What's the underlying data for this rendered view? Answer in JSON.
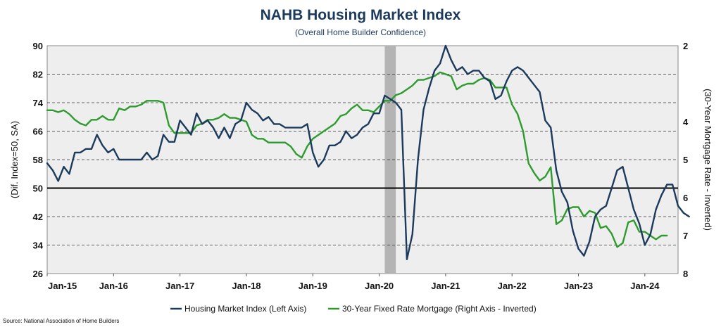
{
  "chart_data": {
    "type": "line",
    "title": "NAHB Housing Market Index",
    "subtitle": "(Overall Home Builder Confidence)",
    "ylabel_left": "(Dif. Index=50, SA)",
    "ylabel_right": "(30-Year Mortgage Rate - Inverted)",
    "source": "Source: National Association of Home Builders",
    "x_start": "2015-01",
    "x_end": "2024-07",
    "x_tick_labels": [
      "Jan-15",
      "Jan-16",
      "Jan-17",
      "Jan-18",
      "Jan-19",
      "Jan-20",
      "Jan-21",
      "Jan-22",
      "Jan-23",
      "Jan-24"
    ],
    "y_left": {
      "min": 26,
      "max": 90,
      "ticks": [
        26,
        34,
        42,
        50,
        58,
        66,
        74,
        82,
        90
      ]
    },
    "y_right": {
      "min": 2,
      "max": 8,
      "inverted": true,
      "ticks": [
        2,
        4,
        5,
        6,
        7,
        8
      ]
    },
    "reference_line_left": 50,
    "shaded_period": {
      "start": "2020-02",
      "end": "2020-04"
    },
    "grid": "horizontal dashed",
    "legend_position": "bottom",
    "colors": {
      "hmi": "#1b3a5c",
      "mortgage": "#2e9b2e",
      "background": "#eeeeee",
      "recession": "#b4b4b4"
    },
    "series": [
      {
        "name": "Housing Market Index (Left Axis)",
        "axis": "left",
        "start": "2015-01",
        "values": [
          57,
          55,
          52,
          56,
          54,
          60,
          60,
          61,
          61,
          65,
          62,
          60,
          61,
          58,
          58,
          58,
          58,
          58,
          60,
          58,
          59,
          65,
          63,
          63,
          69,
          67,
          65,
          71,
          68,
          69,
          67,
          64,
          67,
          64,
          68,
          69,
          74,
          72,
          71,
          69,
          70,
          68,
          68,
          67,
          67,
          67,
          67,
          68,
          60,
          56,
          58,
          62,
          62,
          63,
          66,
          64,
          65,
          67,
          68,
          71,
          71,
          76,
          75,
          74,
          72,
          30,
          37,
          58,
          72,
          78,
          83,
          85,
          90,
          86,
          83,
          84,
          82,
          83,
          83,
          81,
          80,
          75,
          76,
          80,
          83,
          84,
          83,
          81,
          79,
          77,
          69,
          67,
          55,
          49,
          46,
          38,
          33,
          31,
          35,
          42,
          44,
          45,
          50,
          55,
          56,
          50,
          44,
          40,
          34,
          37,
          44,
          48,
          51,
          51,
          45,
          43,
          42
        ]
      },
      {
        "name": "30-Year Fixed Rate Mortgage (Right Axis - Inverted)",
        "axis": "right",
        "start": "2015-01",
        "values": [
          3.7,
          3.7,
          3.75,
          3.7,
          3.8,
          3.95,
          4.05,
          4.1,
          3.95,
          3.95,
          3.85,
          3.95,
          3.95,
          3.65,
          3.7,
          3.6,
          3.6,
          3.55,
          3.45,
          3.45,
          3.45,
          3.5,
          4.1,
          4.3,
          4.3,
          4.3,
          4.3,
          4.1,
          4.05,
          3.95,
          3.95,
          3.9,
          3.8,
          3.9,
          3.9,
          3.95,
          4.0,
          4.35,
          4.45,
          4.45,
          4.55,
          4.55,
          4.55,
          4.55,
          4.65,
          4.85,
          4.95,
          4.65,
          4.45,
          4.35,
          4.25,
          4.15,
          4.05,
          3.85,
          3.8,
          3.65,
          3.55,
          3.7,
          3.7,
          3.75,
          3.6,
          3.45,
          3.45,
          3.3,
          3.25,
          3.15,
          3.05,
          2.9,
          2.9,
          2.85,
          2.8,
          2.7,
          2.75,
          2.8,
          3.15,
          3.05,
          3.0,
          3.0,
          2.9,
          2.85,
          2.9,
          3.1,
          3.1,
          3.1,
          3.55,
          3.8,
          4.25,
          5.1,
          5.35,
          5.55,
          5.45,
          5.2,
          6.7,
          6.6,
          6.3,
          6.25,
          6.25,
          6.5,
          6.35,
          6.4,
          6.8,
          6.75,
          6.95,
          7.3,
          7.2,
          6.65,
          6.6,
          6.9,
          6.9,
          7.0,
          7.1,
          7.0,
          7.0
        ]
      }
    ]
  }
}
